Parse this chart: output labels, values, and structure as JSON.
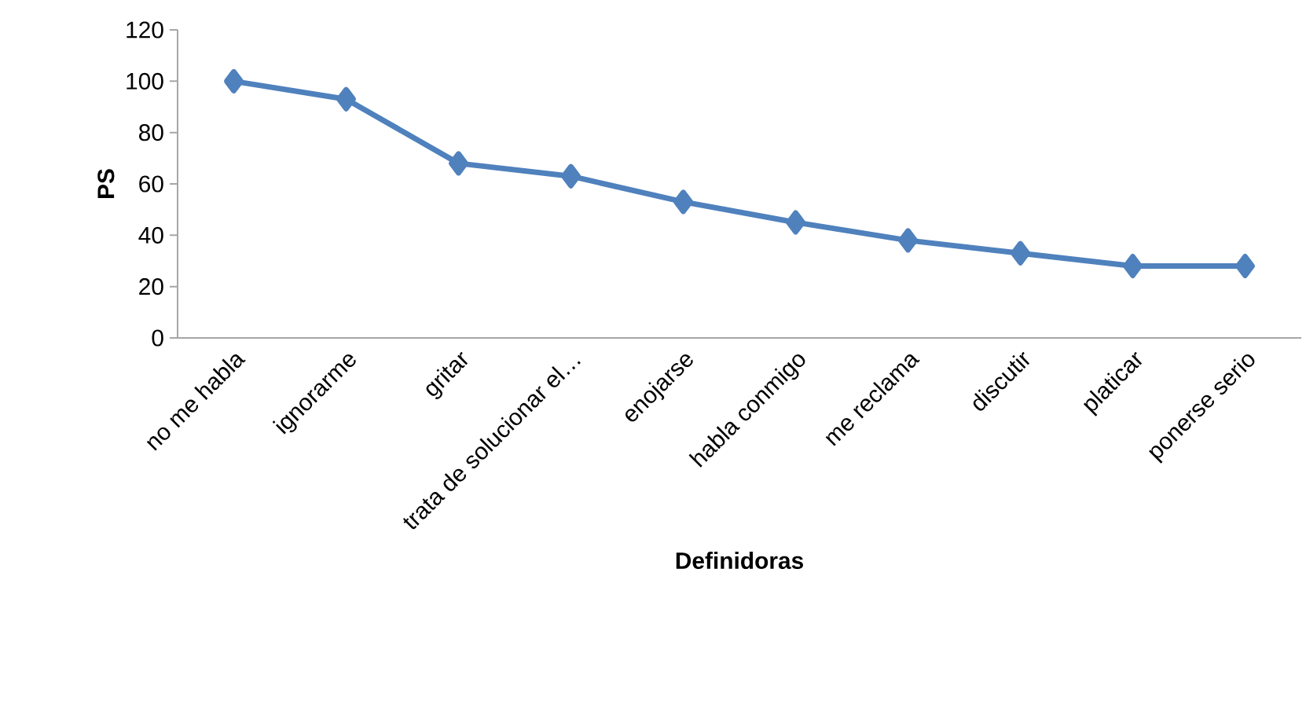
{
  "chart_data": {
    "type": "line",
    "xlabel": "Definidoras",
    "ylabel": "PS",
    "categories": [
      "no me habla",
      "ignorarme",
      "gritar",
      "trata de solucionar el…",
      "enojarse",
      "habla conmigo",
      "me reclama",
      "discutir",
      "platicar",
      "ponerse serio"
    ],
    "series": [
      {
        "color": "#4f81bd",
        "values": [
          100,
          93,
          68,
          63,
          53,
          45,
          38,
          33,
          28,
          28
        ]
      }
    ],
    "ylim": [
      0,
      120
    ],
    "yticks": [
      0,
      20,
      40,
      60,
      80,
      100,
      120
    ],
    "grid": false,
    "marker": "diamond",
    "line_style": "solid"
  }
}
